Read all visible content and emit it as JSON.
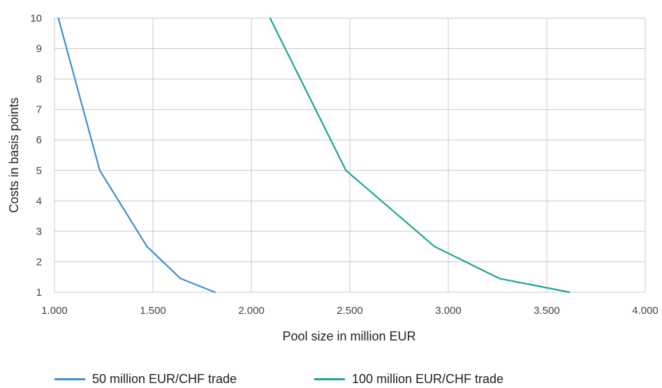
{
  "chart_data": {
    "type": "line",
    "xlabel": "Pool size in million EUR",
    "ylabel": "Costs in basis points",
    "xlim": [
      1000,
      4000
    ],
    "ylim": [
      1,
      10
    ],
    "x_ticks": [
      "1.000",
      "1.500",
      "2.000",
      "2.500",
      "3.000",
      "3.500",
      "4.000"
    ],
    "x_tick_values": [
      1000,
      1500,
      2000,
      2500,
      3000,
      3500,
      4000
    ],
    "y_ticks": [
      1,
      2,
      3,
      4,
      5,
      6,
      7,
      8,
      9,
      10
    ],
    "grid": true,
    "legend_position": "bottom",
    "series": [
      {
        "name": "50 million EUR/CHF trade",
        "color": "#3d8fd6",
        "points": [
          [
            1020,
            10
          ],
          [
            1230,
            5
          ],
          [
            1470,
            2.5
          ],
          [
            1640,
            1.45
          ],
          [
            1815,
            1
          ]
        ]
      },
      {
        "name": "100 million EUR/CHF trade",
        "color": "#1aa596",
        "points": [
          [
            2095,
            10
          ],
          [
            2480,
            5
          ],
          [
            2930,
            2.5
          ],
          [
            3260,
            1.45
          ],
          [
            3615,
            1
          ]
        ]
      }
    ]
  }
}
